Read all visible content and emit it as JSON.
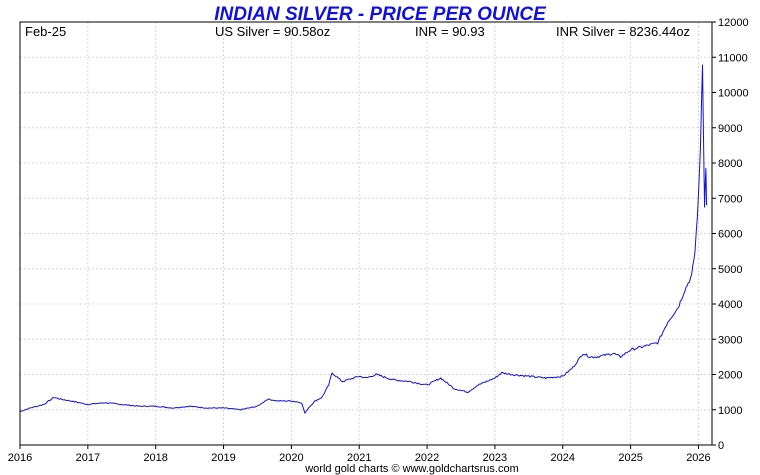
{
  "chart_data": {
    "type": "line",
    "title": "INDIAN SILVER - PRICE PER OUNCE",
    "header": {
      "date": "Feb-25",
      "us_silver": "US Silver = 90.58oz",
      "inr": "INR = 90.93",
      "inr_silver": "INR Silver = 8236.44oz"
    },
    "footer": "world gold charts © www.goldchartsrus.com",
    "xlabel": "",
    "ylabel": "",
    "x_ticks": [
      "2016",
      "2017",
      "2018",
      "2019",
      "2020",
      "2021",
      "2022",
      "2023",
      "2024",
      "2025",
      "2026"
    ],
    "y_ticks": [
      0,
      1000,
      2000,
      3000,
      4000,
      5000,
      6000,
      7000,
      8000,
      9000,
      10000,
      11000,
      12000
    ],
    "xlim": [
      2016.0,
      2026.2
    ],
    "ylim": [
      0,
      12000
    ],
    "grid": true,
    "y_axis_side": "right",
    "series": [
      {
        "name": "",
        "color": "#1010e0",
        "x": [
          2016.0,
          2016.15,
          2016.35,
          2016.5,
          2016.6,
          2016.75,
          2017.0,
          2017.25,
          2017.5,
          2017.75,
          2018.0,
          2018.25,
          2018.5,
          2018.75,
          2019.0,
          2019.25,
          2019.5,
          2019.65,
          2019.8,
          2020.0,
          2020.15,
          2020.2,
          2020.25,
          2020.35,
          2020.45,
          2020.55,
          2020.6,
          2020.75,
          2021.0,
          2021.1,
          2021.25,
          2021.5,
          2021.75,
          2022.0,
          2022.2,
          2022.4,
          2022.6,
          2022.75,
          2023.0,
          2023.1,
          2023.25,
          2023.5,
          2023.75,
          2024.0,
          2024.15,
          2024.3,
          2024.4,
          2024.5,
          2024.75,
          2024.85,
          2025.0,
          2025.2,
          2025.4,
          2025.55,
          2025.7,
          2025.8,
          2025.9,
          2025.95,
          2026.0,
          2026.03,
          2026.06,
          2026.08,
          2026.09,
          2026.11,
          2026.12
        ],
        "y": [
          950,
          1050,
          1150,
          1350,
          1300,
          1250,
          1150,
          1200,
          1150,
          1100,
          1100,
          1050,
          1100,
          1050,
          1050,
          1000,
          1100,
          1300,
          1250,
          1250,
          1200,
          900,
          1050,
          1250,
          1350,
          1700,
          2050,
          1800,
          1950,
          1900,
          2000,
          1850,
          1800,
          1700,
          1900,
          1600,
          1500,
          1700,
          1900,
          2050,
          2000,
          1950,
          1900,
          1950,
          2200,
          2600,
          2500,
          2500,
          2600,
          2500,
          2700,
          2800,
          2900,
          3500,
          3900,
          4400,
          4800,
          5500,
          7000,
          8500,
          10900,
          8000,
          6800,
          7800,
          6800
        ]
      }
    ]
  }
}
